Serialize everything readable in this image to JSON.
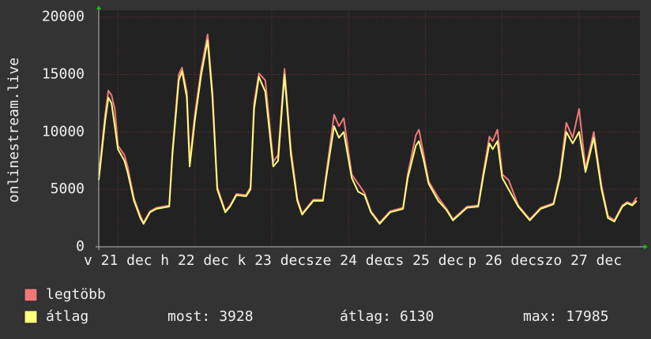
{
  "chart_data": {
    "type": "line",
    "y_label": "onlinestream.live",
    "x": [
      0,
      2,
      3,
      4,
      5,
      6,
      8,
      9,
      11,
      13,
      14,
      16,
      18,
      22,
      23,
      25,
      26,
      27.5,
      28.4,
      30,
      32,
      34,
      35.5,
      37,
      39.5,
      41,
      43,
      46,
      47.4,
      48.5,
      50,
      52,
      54.5,
      56,
      58,
      60,
      62,
      63.5,
      67,
      70,
      71,
      73.5,
      75,
      76.5,
      79,
      81,
      83,
      85,
      87.7,
      91,
      95,
      96.5,
      99,
      100,
      101.5,
      103,
      106,
      108.6,
      110.6,
      115,
      118.5,
      120,
      122,
      123,
      124.5,
      126,
      128,
      131,
      134.6,
      138,
      142,
      144,
      146,
      148,
      150,
      152,
      154.6,
      157,
      159,
      161,
      163.5,
      165,
      166.6,
      168
    ],
    "series": [
      {
        "name": "legtöbb",
        "color": "#f07878",
        "values": [
          6200,
          11500,
          13600,
          13200,
          12000,
          8800,
          8000,
          7000,
          4200,
          2700,
          2100,
          3100,
          3400,
          3600,
          8300,
          15000,
          15600,
          13500,
          7400,
          11500,
          15500,
          18500,
          13500,
          5200,
          3100,
          3600,
          4600,
          4500,
          5200,
          12500,
          15100,
          14500,
          7400,
          8000,
          15500,
          8500,
          4200,
          2900,
          4100,
          4100,
          6300,
          11500,
          10500,
          11200,
          6300,
          5500,
          4700,
          3100,
          2100,
          3100,
          3400,
          6300,
          9700,
          10200,
          8000,
          5700,
          4300,
          3300,
          2400,
          3500,
          3600,
          6300,
          9600,
          9200,
          10200,
          6300,
          5800,
          3600,
          2400,
          3400,
          3800,
          6300,
          10800,
          9500,
          12000,
          6800,
          10000,
          5300,
          2700,
          2300,
          3600,
          3900,
          3700,
          4300
        ]
      },
      {
        "name": "átlag",
        "color": "#ffff80",
        "values": [
          5800,
          11000,
          13000,
          12500,
          10500,
          8500,
          7500,
          6500,
          4000,
          2500,
          2000,
          3000,
          3300,
          3500,
          8000,
          14500,
          15300,
          13000,
          7000,
          11000,
          15000,
          18000,
          13000,
          5000,
          3000,
          3500,
          4500,
          4400,
          5000,
          12000,
          14800,
          13500,
          7000,
          7500,
          15000,
          8000,
          4000,
          2800,
          4000,
          4000,
          6000,
          10500,
          9500,
          10000,
          6000,
          4800,
          4500,
          3000,
          2000,
          3000,
          3300,
          6000,
          8800,
          9200,
          7500,
          5500,
          4000,
          3200,
          2300,
          3400,
          3500,
          6000,
          9000,
          8500,
          9200,
          6000,
          5000,
          3500,
          2300,
          3300,
          3700,
          6000,
          10000,
          9000,
          10000,
          6500,
          9500,
          5000,
          2500,
          2200,
          3500,
          3800,
          3600,
          4000
        ]
      }
    ],
    "xlim": [
      0,
      169
    ],
    "xticks": [
      {
        "value": 6,
        "label": "v 21 dec"
      },
      {
        "value": 30,
        "label": "h 22 dec"
      },
      {
        "value": 54,
        "label": "k 23 dec"
      },
      {
        "value": 78,
        "label": "sze 24 dec"
      },
      {
        "value": 102,
        "label": "cs 25 dec"
      },
      {
        "value": 126,
        "label": "p 26 dec"
      },
      {
        "value": 150,
        "label": "szo 27 dec"
      }
    ],
    "ylim": [
      0,
      20600
    ],
    "yticks": [
      0,
      5000,
      10000,
      15000,
      20000
    ],
    "grid": true,
    "stats": [
      {
        "label": "most:",
        "value": 3928
      },
      {
        "label": "átlag:",
        "value": 6130
      },
      {
        "label": "max:",
        "value": 17985
      }
    ]
  }
}
